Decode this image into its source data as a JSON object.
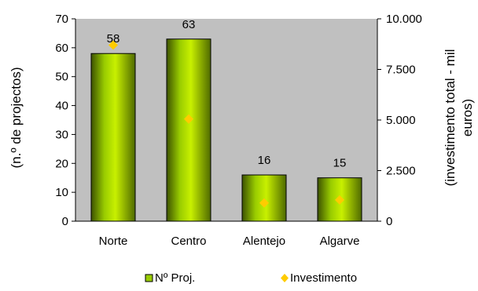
{
  "chart_data": {
    "type": "bar",
    "categories": [
      "Norte",
      "Centro",
      "Alentejo",
      "Algarve"
    ],
    "series": [
      {
        "name": "Nº Proj.",
        "axis": "left",
        "kind": "bar",
        "values": [
          58,
          63,
          16,
          15
        ],
        "data_labels": [
          "58",
          "63",
          "16",
          "15"
        ],
        "color": "#99cc00"
      },
      {
        "name": "Investimento",
        "axis": "right",
        "kind": "scatter",
        "marker": "diamond",
        "values": [
          8700,
          5050,
          900,
          1050
        ],
        "color": "#ffcc00"
      }
    ],
    "y_left": {
      "label": "(n.º de projectos)",
      "range": [
        0,
        70
      ],
      "ticks": [
        0,
        10,
        20,
        30,
        40,
        50,
        60,
        70
      ],
      "tick_labels": [
        "0",
        "10",
        "20",
        "30",
        "40",
        "50",
        "60",
        "70"
      ]
    },
    "y_right": {
      "label_lines": [
        "(investimento total - mil",
        "euros)"
      ],
      "range": [
        0,
        10000
      ],
      "ticks": [
        0,
        2500,
        5000,
        7500,
        10000
      ],
      "tick_labels": [
        "0",
        "2.500",
        "5.000",
        "7.500",
        "10.000"
      ]
    },
    "plot_background": "#c0c0c0",
    "grid": false,
    "legend": {
      "position": "bottom"
    }
  }
}
